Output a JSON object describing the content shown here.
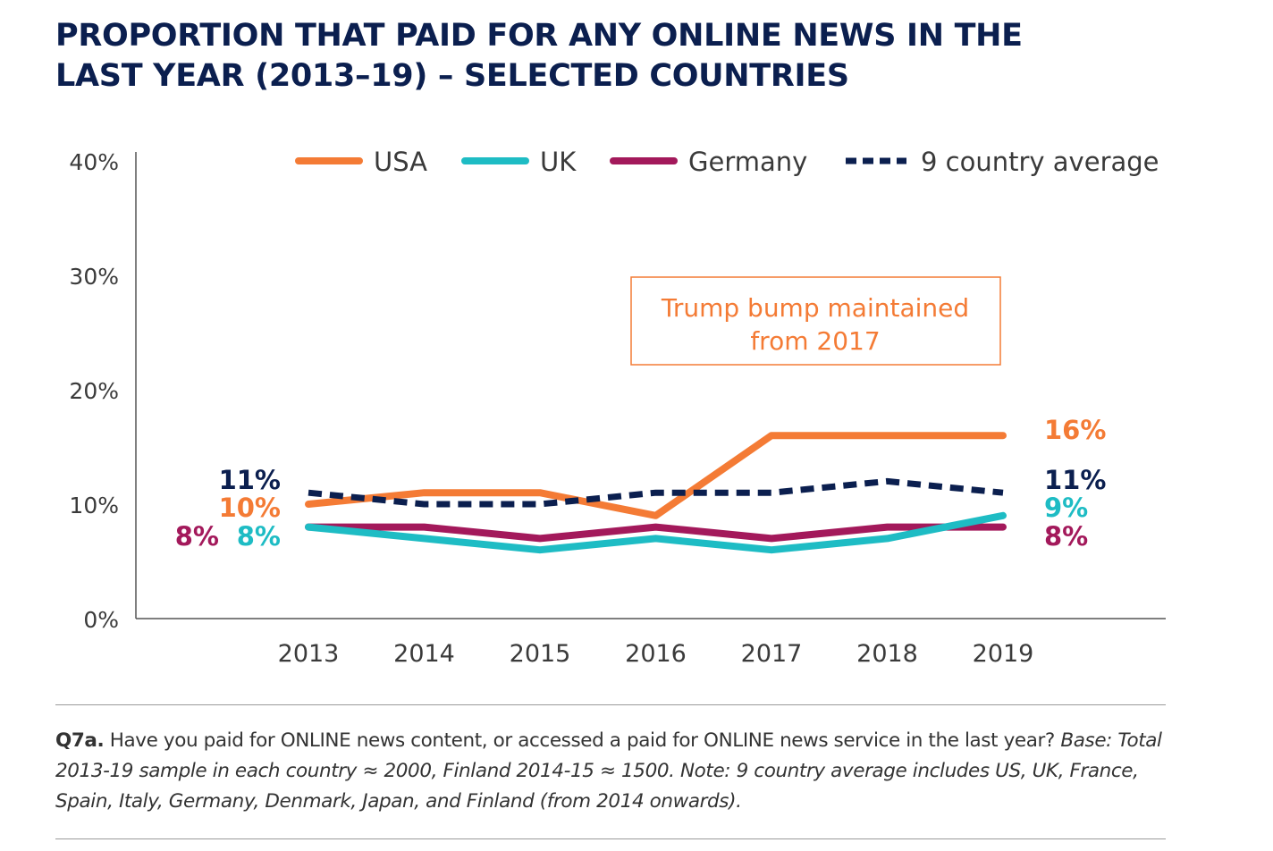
{
  "title_line1": "PROPORTION THAT PAID FOR ANY ONLINE NEWS IN THE",
  "title_line2": "LAST YEAR (2013–19) – SELECTED COUNTRIES",
  "chart_data": {
    "type": "line",
    "x": [
      "2013",
      "2014",
      "2015",
      "2016",
      "2017",
      "2018",
      "2019"
    ],
    "ylim": [
      0,
      40
    ],
    "yticks": [
      0,
      10,
      20,
      30,
      40
    ],
    "ytick_labels": [
      "0%",
      "10%",
      "20%",
      "30%",
      "40%"
    ],
    "legend_position": "top",
    "series": [
      {
        "name": "USA",
        "color": "#f47b35",
        "dash": "solid",
        "values": [
          10,
          11,
          11,
          9,
          16,
          16,
          16
        ]
      },
      {
        "name": "UK",
        "color": "#1ebcc4",
        "dash": "solid",
        "values": [
          8,
          7,
          6,
          7,
          6,
          7,
          9
        ]
      },
      {
        "name": "Germany",
        "color": "#a3195b",
        "dash": "solid",
        "values": [
          8,
          8,
          7,
          8,
          7,
          8,
          8
        ]
      },
      {
        "name": "9 country average",
        "color": "#0b1f4f",
        "dash": "dashed",
        "values": [
          11,
          10,
          10,
          11,
          11,
          12,
          11
        ]
      }
    ],
    "start_labels": [
      {
        "series": "9 country average",
        "text": "11%",
        "color": "#0b1f4f"
      },
      {
        "series": "USA",
        "text": "10%",
        "color": "#f47b35"
      },
      {
        "series": "Germany",
        "text": "8%",
        "color": "#a3195b"
      },
      {
        "series": "UK",
        "text": "8%",
        "color": "#1ebcc4"
      }
    ],
    "end_labels": [
      {
        "series": "USA",
        "text": "16%",
        "color": "#f47b35"
      },
      {
        "series": "9 country average",
        "text": "11%",
        "color": "#0b1f4f"
      },
      {
        "series": "UK",
        "text": "9%",
        "color": "#1ebcc4"
      },
      {
        "series": "Germany",
        "text": "8%",
        "color": "#a3195b"
      }
    ],
    "annotation": {
      "line1": "Trump bump maintained",
      "line2": "from 2017",
      "color": "#f47b35"
    }
  },
  "footnote": {
    "question_id": "Q7a.",
    "question": " Have you paid for ONLINE news content, or accessed a paid for ONLINE news service in the last year? ",
    "base": "Base: Total 2013-19 sample in each country ≈ 2000, Finland 2014-15 ≈ 1500. Note: 9 country average includes US, UK, France, Spain, Italy, Germany, Denmark, Japan, and Finland (from 2014 onwards)."
  }
}
